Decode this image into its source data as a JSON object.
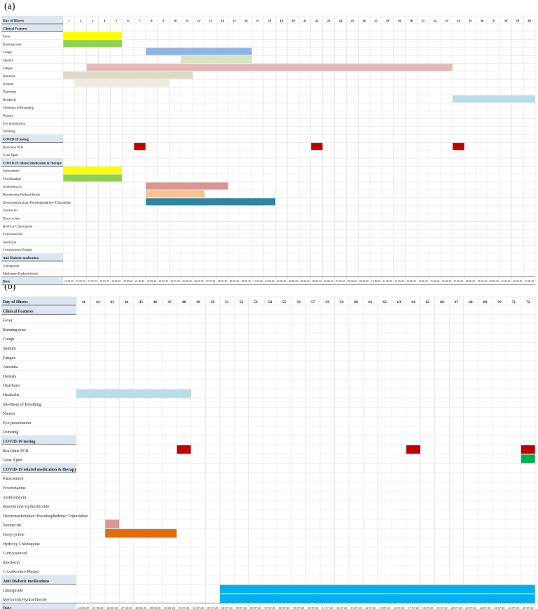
{
  "chart_data": [
    {
      "panel_label": "(a)",
      "type": "table",
      "header_label": "Day of Illness",
      "footer_label": "Date",
      "days": [
        1,
        2,
        3,
        4,
        5,
        6,
        7,
        8,
        9,
        10,
        11,
        12,
        13,
        14,
        15,
        16,
        17,
        18,
        19,
        20,
        21,
        22,
        23,
        24,
        25,
        26,
        27,
        28,
        29,
        30,
        31,
        32,
        33,
        34,
        35,
        36,
        37,
        38,
        39,
        40
      ],
      "dates": [
        "15-05-20",
        "16-05-20",
        "17-05-20",
        "18-05-20",
        "19-05-20",
        "20-05-20",
        "21-05-20",
        "22-05-20",
        "23-05-20",
        "24-05-20",
        "25-05-20",
        "26-05-20",
        "27-05-20",
        "28-05-20",
        "29-05-20",
        "30-05-20",
        "31-05-20",
        "01-06-20",
        "02-06-20",
        "03-06-20",
        "04-06-20",
        "05-06-20",
        "06-06-20",
        "07-06-20",
        "08-06-20",
        "09-06-20",
        "10-06-20",
        "11-06-20",
        "12-06-20",
        "13-06-20",
        "14-06-20",
        "15-06-20",
        "16-06-20",
        "17-06-20",
        "18-06-20",
        "19-06-20",
        "20-06-20",
        "21-06-20",
        "22-06-20",
        "23-06-20"
      ],
      "rows": [
        {
          "label": "Clinical Features",
          "section": true
        },
        {
          "label": "Fever",
          "bars": [
            {
              "start": 1,
              "end": 5,
              "color": "#ffff00"
            }
          ]
        },
        {
          "label": "Running nose",
          "bars": [
            {
              "start": 1,
              "end": 5,
              "color": "#92d050"
            }
          ]
        },
        {
          "label": "Cough",
          "bars": [
            {
              "start": 8,
              "end": 16,
              "color": "#8eb4e3"
            }
          ]
        },
        {
          "label": "Sputum",
          "bars": [
            {
              "start": 11,
              "end": 16,
              "color": "#d7e4bd"
            }
          ]
        },
        {
          "label": "Fatigue",
          "bars": [
            {
              "start": 3,
              "end": 33,
              "color": "#e6b9b8"
            }
          ]
        },
        {
          "label": "Anosmia",
          "bars": [
            {
              "start": 1,
              "end": 11,
              "color": "#ddd9c4"
            }
          ]
        },
        {
          "label": "Disteste",
          "bars": [
            {
              "start": 2,
              "end": 9,
              "color": "#eeece1"
            }
          ]
        },
        {
          "label": "Diarrhoea",
          "bars": []
        },
        {
          "label": "Headache",
          "bars": [
            {
              "start": 34,
              "end": 40,
              "color": "#b7dee8"
            }
          ]
        },
        {
          "label": "Shortness of Breathing",
          "bars": []
        },
        {
          "label": "Nausea",
          "bars": []
        },
        {
          "label": "Eye presentation",
          "bars": []
        },
        {
          "label": "Vomiting",
          "bars": []
        },
        {
          "label": "COVID-19 testing",
          "section": true
        },
        {
          "label": "Real-time PCR",
          "bars": [
            {
              "start": 7,
              "end": 7,
              "color": "#c00000"
            },
            {
              "start": 22,
              "end": 22,
              "color": "#c00000"
            },
            {
              "start": 34,
              "end": 34,
              "color": "#c00000"
            }
          ]
        },
        {
          "label": "Gene Xpert",
          "bars": []
        },
        {
          "label": "COVID-19 related medication & therapy",
          "section": true
        },
        {
          "label": "Paracetamol",
          "bars": [
            {
              "start": 1,
              "end": 5,
              "color": "#ffff00"
            }
          ]
        },
        {
          "label": "Fexofenadine",
          "bars": [
            {
              "start": 1,
              "end": 5,
              "color": "#92d050"
            }
          ]
        },
        {
          "label": "Azithromycin",
          "bars": [
            {
              "start": 8,
              "end": 14,
              "color": "#d99694"
            }
          ]
        },
        {
          "label": "Bromhexine Hydrochloride",
          "bars": [
            {
              "start": 8,
              "end": 12,
              "color": "#fac090"
            }
          ]
        },
        {
          "label": "Dextromethorphan+Pseudoephedrine+Triprolidine",
          "bars": [
            {
              "start": 8,
              "end": 18,
              "color": "#31859c"
            }
          ]
        },
        {
          "label": "Ivermectin",
          "bars": []
        },
        {
          "label": "Doxycycline",
          "bars": []
        },
        {
          "label": "Hydroxy Chloroquine",
          "bars": []
        },
        {
          "label": "Corticosteroid",
          "bars": []
        },
        {
          "label": "Interferon",
          "bars": []
        },
        {
          "label": "Covalescence Plasma",
          "bars": []
        },
        {
          "label": "Anti Diabetic medication",
          "section": true
        },
        {
          "label": "Glimepiride",
          "bars": []
        },
        {
          "label": "Metformin Hydrochloride",
          "bars": []
        }
      ]
    },
    {
      "panel_label": "(b)",
      "type": "table",
      "header_label": "Day of Illness",
      "footer_label": "Date",
      "days": [
        41,
        42,
        43,
        44,
        45,
        46,
        47,
        48,
        49,
        50,
        51,
        52,
        53,
        54,
        55,
        56,
        57,
        58,
        59,
        60,
        61,
        62,
        63,
        64,
        65,
        66,
        67,
        68,
        69,
        70,
        71,
        72
      ],
      "dates": [
        "24-06-20",
        "25-06-20",
        "26-06-20",
        "27-06-20",
        "28-06-20",
        "29-06-20",
        "30-06-20",
        "01-07-20",
        "02-07-20",
        "03-07-20",
        "04-07-20",
        "05-07-20",
        "06-07-20",
        "07-07-20",
        "08-07-20",
        "09-07-20",
        "10-07-20",
        "11-07-20",
        "12-07-20",
        "13-07-20",
        "14-07-20",
        "15-07-20",
        "16-07-20",
        "17-07-20",
        "18-07-20",
        "19-07-20",
        "20-07-20",
        "21-07-20",
        "22-07-20",
        "23-07-20",
        "24-07-20",
        "25-07-20"
      ],
      "rows": [
        {
          "label": "Clinical Features",
          "section": true
        },
        {
          "label": "Fever",
          "bars": []
        },
        {
          "label": "Running nose",
          "bars": []
        },
        {
          "label": "Cough",
          "bars": []
        },
        {
          "label": "Sputum",
          "bars": []
        },
        {
          "label": "Fatigue",
          "bars": []
        },
        {
          "label": "Anosmia",
          "bars": []
        },
        {
          "label": "Disteste",
          "bars": []
        },
        {
          "label": "Diarrhoea",
          "bars": []
        },
        {
          "label": "Headache",
          "bars": [
            {
              "start": 41,
              "end": 48,
              "color": "#b7dee8"
            }
          ]
        },
        {
          "label": "Shortness of Breathing",
          "bars": []
        },
        {
          "label": "Nausea",
          "bars": []
        },
        {
          "label": "Eye presentation",
          "bars": []
        },
        {
          "label": "Vomiting",
          "bars": []
        },
        {
          "label": "COVID-19 testing",
          "section": true
        },
        {
          "label": "Real-time PCR",
          "bars": [
            {
              "start": 48,
              "end": 48,
              "color": "#c00000"
            },
            {
              "start": 64,
              "end": 64,
              "color": "#c00000"
            },
            {
              "start": 72,
              "end": 72,
              "color": "#c00000"
            }
          ]
        },
        {
          "label": "Gene Xpert",
          "bars": [
            {
              "start": 72,
              "end": 72,
              "color": "#00b050"
            }
          ]
        },
        {
          "label": "COVID-19 related medication & therapy",
          "section": true
        },
        {
          "label": "Paracetamol",
          "bars": []
        },
        {
          "label": "Fexofenadine",
          "bars": []
        },
        {
          "label": "Azithromycin",
          "bars": []
        },
        {
          "label": "Bromhexine Hydrochloride",
          "bars": []
        },
        {
          "label": "Dextromethorphan+Pseudoephedrine+Triprolidine",
          "bars": []
        },
        {
          "label": "Ivermectin",
          "bars": [
            {
              "start": 43,
              "end": 43,
              "color": "#d99694"
            }
          ]
        },
        {
          "label": "Doxycycline",
          "bars": [
            {
              "start": 43,
              "end": 47,
              "color": "#e26b0a"
            }
          ]
        },
        {
          "label": "Hydroxy Chloroquine",
          "bars": []
        },
        {
          "label": "Corticosteroid",
          "bars": []
        },
        {
          "label": "Interferon",
          "bars": []
        },
        {
          "label": "Covalescence Plasma",
          "bars": []
        },
        {
          "label": "Anti Diabetic medications",
          "section": true
        },
        {
          "label": "Glimepiride",
          "bars": [
            {
              "start": 51,
              "end": 72,
              "color": "#00b0f0"
            }
          ]
        },
        {
          "label": "Metformin Hydrochloride",
          "bars": [
            {
              "start": 51,
              "end": 72,
              "color": "#00b0f0"
            }
          ]
        }
      ]
    }
  ]
}
